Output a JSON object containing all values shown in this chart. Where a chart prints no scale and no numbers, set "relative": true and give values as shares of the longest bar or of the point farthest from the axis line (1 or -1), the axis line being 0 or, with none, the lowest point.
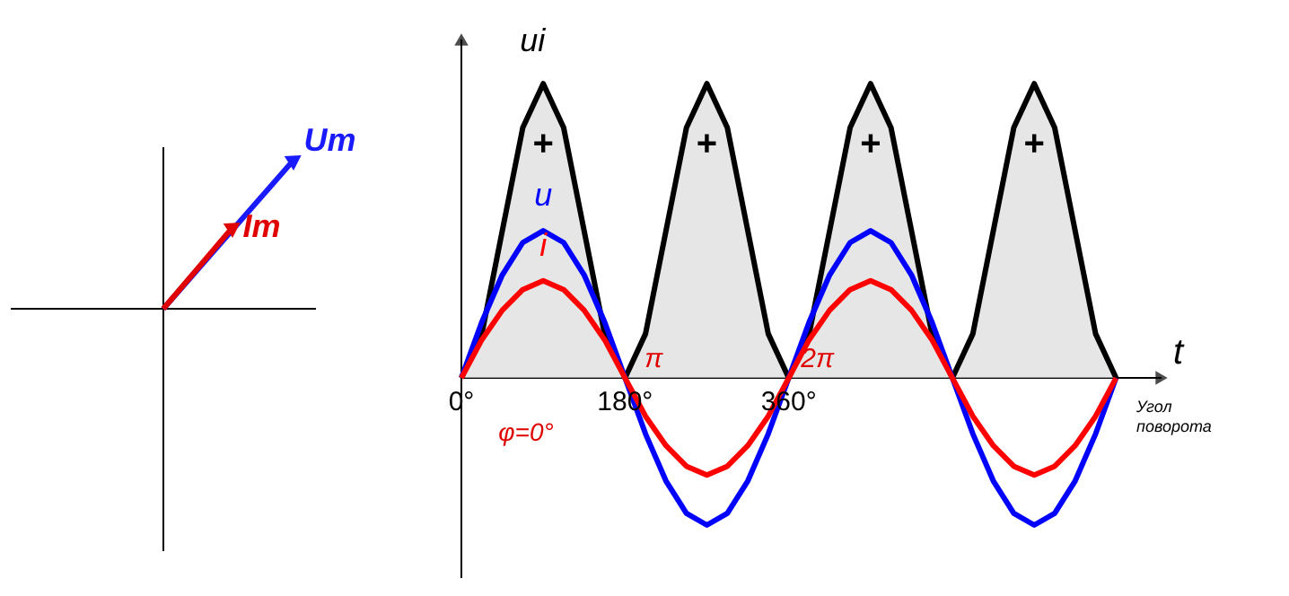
{
  "chart_data": {
    "type": "line",
    "relative": true,
    "xlabel": "t",
    "x": [
      0,
      22.5,
      45,
      67.5,
      90,
      112.5,
      135,
      157.5,
      180,
      202.5,
      225,
      247.5,
      270,
      292.5,
      315,
      337.5,
      360,
      382.5,
      405,
      427.5,
      450,
      472.5,
      495,
      517.5,
      540,
      562.5,
      585,
      607.5,
      630,
      652.5,
      675,
      697.5,
      720
    ],
    "xlim": [
      0,
      770
    ],
    "xticks": [
      {
        "value": 0,
        "label": "0°"
      },
      {
        "value": 180,
        "label": "180°"
      },
      {
        "value": 360,
        "label": "360°"
      }
    ],
    "series": [
      {
        "name": "ui",
        "type": "area",
        "color": "#000000",
        "values": [
          0,
          0.15,
          0.5,
          0.85,
          1,
          0.85,
          0.5,
          0.15,
          0,
          0.15,
          0.5,
          0.85,
          1,
          0.85,
          0.5,
          0.15,
          0,
          0.15,
          0.5,
          0.85,
          1,
          0.85,
          0.5,
          0.15,
          0,
          0.15,
          0.5,
          0.85,
          1,
          0.85,
          0.5,
          0.15,
          0
        ]
      },
      {
        "name": "u",
        "color": "#0000ff",
        "values": [
          0,
          0.19,
          0.35,
          0.46,
          0.5,
          0.46,
          0.35,
          0.19,
          0,
          -0.19,
          -0.35,
          -0.46,
          -0.5,
          -0.46,
          -0.35,
          -0.19,
          0,
          0.19,
          0.35,
          0.46,
          0.5,
          0.46,
          0.35,
          0.19,
          0,
          -0.19,
          -0.35,
          -0.46,
          -0.5,
          -0.46,
          -0.35,
          -0.19,
          0
        ]
      },
      {
        "name": "i",
        "color": "#ff0000",
        "values": [
          0,
          0.13,
          0.23,
          0.3,
          0.33,
          0.3,
          0.23,
          0.13,
          0,
          -0.13,
          -0.23,
          -0.3,
          -0.33,
          -0.3,
          -0.23,
          -0.13,
          0,
          0.13,
          0.23,
          0.3,
          0.33,
          0.3,
          0.23,
          0.13,
          0,
          -0.13,
          -0.23,
          -0.3,
          -0.33,
          -0.3,
          -0.23,
          -0.13,
          0
        ]
      }
    ],
    "annotations": [
      "+",
      "+",
      "+",
      "+",
      "π",
      "2π",
      "φ=0°",
      "Угол поворота",
      "Um",
      "Im"
    ],
    "line_style": "solid"
  }
}
